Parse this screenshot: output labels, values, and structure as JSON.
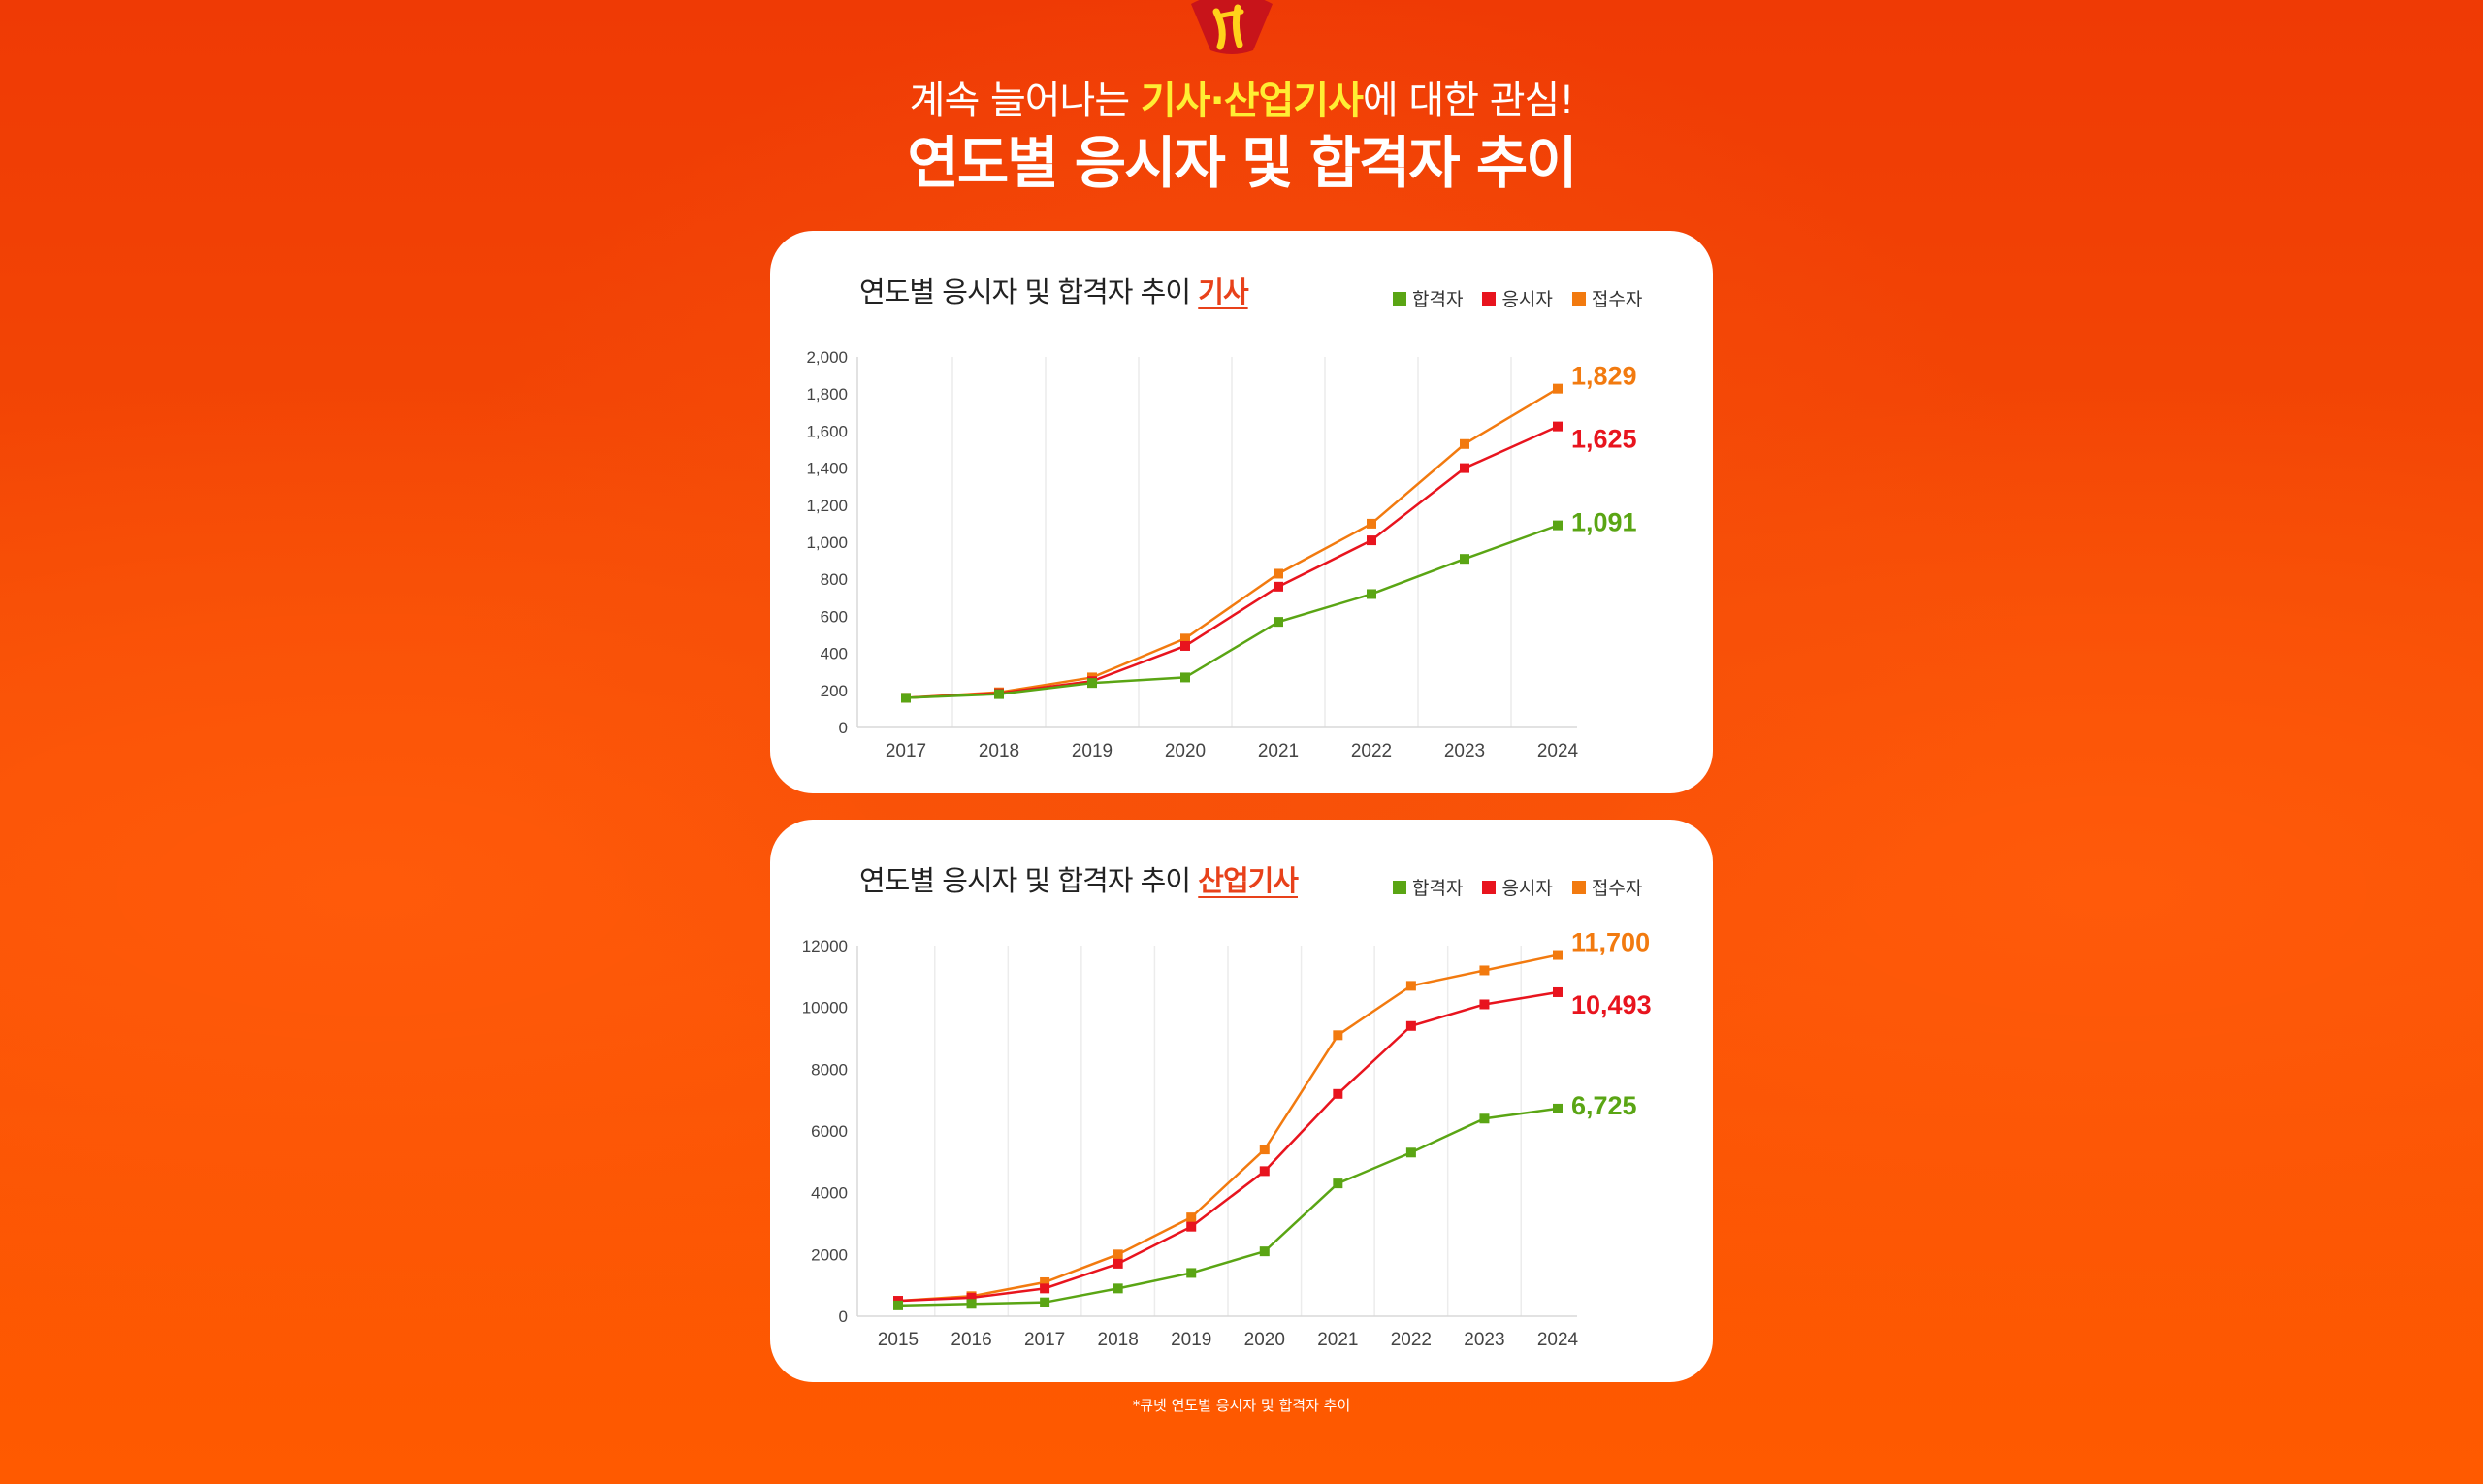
{
  "header": {
    "headline_prefix": "계속 늘어나는 ",
    "headline_hl1": "기사",
    "headline_sep": "·",
    "headline_hl2": "산업기사",
    "headline_suffix": "에 대한 관심!",
    "title": "연도별 응시자 및 합격자 추이"
  },
  "colors": {
    "pass": "#5aa514",
    "applicant": "#e8141e",
    "registrant": "#f27a0f",
    "accent_text": "#ffee33",
    "title_accent": "#e8411a"
  },
  "legend": {
    "pass": "합격자",
    "applicant": "응시자",
    "registrant": "접수자"
  },
  "footnote": "*큐넷 연도별 응시자 및 합격자 추이",
  "chart_data": [
    {
      "type": "line",
      "title_prefix": "연도별 응시자 및 합격자 추이 ",
      "title_accent": "기사",
      "x": [
        "2017",
        "2018",
        "2019",
        "2020",
        "2021",
        "2022",
        "2023",
        "2024"
      ],
      "ylim": [
        0,
        2000
      ],
      "yticks": [
        "0",
        "200",
        "400",
        "600",
        "800",
        "1,000",
        "1,200",
        "1,400",
        "1,600",
        "1,800",
        "2,000"
      ],
      "ytick_values": [
        0,
        200,
        400,
        600,
        800,
        1000,
        1200,
        1400,
        1600,
        1800,
        2000
      ],
      "grid": "vertical",
      "legend_position": "top-right",
      "series": [
        {
          "name": "합격자",
          "key": "pass",
          "values": [
            160,
            180,
            240,
            270,
            570,
            720,
            910,
            1091
          ],
          "end_label": "1,091"
        },
        {
          "name": "응시자",
          "key": "applicant",
          "values": [
            160,
            185,
            250,
            440,
            760,
            1010,
            1400,
            1625
          ],
          "end_label": "1,625"
        },
        {
          "name": "접수자",
          "key": "registrant",
          "values": [
            160,
            190,
            270,
            480,
            830,
            1100,
            1530,
            1829
          ],
          "end_label": "1,829"
        }
      ]
    },
    {
      "type": "line",
      "title_prefix": "연도별 응시자 및 합격자 추이 ",
      "title_accent": "산업기사",
      "x": [
        "2015",
        "2016",
        "2017",
        "2018",
        "2019",
        "2020",
        "2021",
        "2022",
        "2023",
        "2024"
      ],
      "ylim": [
        0,
        12000
      ],
      "yticks": [
        "0",
        "2000",
        "4000",
        "6000",
        "8000",
        "10000",
        "12000"
      ],
      "ytick_values": [
        0,
        2000,
        4000,
        6000,
        8000,
        10000,
        12000
      ],
      "grid": "vertical",
      "legend_position": "top-right",
      "series": [
        {
          "name": "합격자",
          "key": "pass",
          "values": [
            350,
            400,
            450,
            900,
            1400,
            2100,
            4300,
            5300,
            6400,
            6725
          ],
          "end_label": "6,725"
        },
        {
          "name": "응시자",
          "key": "applicant",
          "values": [
            500,
            600,
            900,
            1700,
            2900,
            4700,
            7200,
            9400,
            10100,
            10493
          ],
          "end_label": "10,493"
        },
        {
          "name": "접수자",
          "key": "registrant",
          "values": [
            500,
            650,
            1100,
            2000,
            3200,
            5400,
            9100,
            10700,
            11200,
            11700
          ],
          "end_label": "11,700"
        }
      ]
    }
  ]
}
